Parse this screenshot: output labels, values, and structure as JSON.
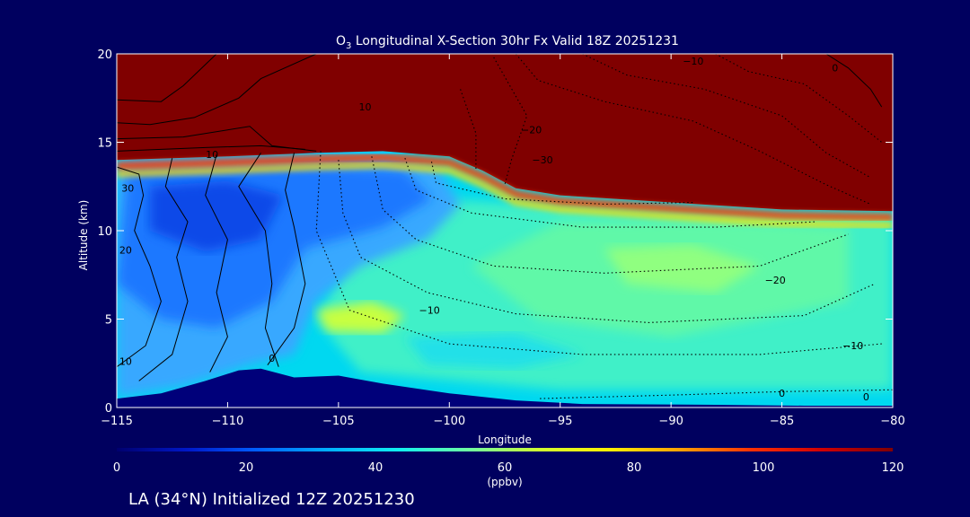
{
  "chart_data": {
    "type": "heatmap",
    "title": "O3 Longitudinal X-Section 30hr  Fx Valid 18Z 20251231",
    "title_parts": {
      "lead": "O",
      "subscript": "3",
      "rest": " Longitudinal X-Section 30hr  Fx Valid 18Z 20251231"
    },
    "xlabel": "Longitude",
    "ylabel": "Altitude (km)",
    "xlim": [
      -115,
      -80
    ],
    "ylim": [
      0,
      20
    ],
    "x_ticks": [
      -115,
      -110,
      -105,
      -100,
      -95,
      -90,
      -85,
      -80
    ],
    "x_tick_labels": [
      "−115",
      "−110",
      "−105",
      "−100",
      "−95",
      "−90",
      "−85",
      "−80"
    ],
    "y_ticks": [
      0,
      5,
      10,
      15,
      20
    ],
    "y_tick_labels": [
      "0",
      "5",
      "10",
      "15",
      "20"
    ],
    "tropopause_km": [
      [
        -115,
        14.0
      ],
      [
        -110,
        14.2
      ],
      [
        -106,
        14.4
      ],
      [
        -103,
        14.5
      ],
      [
        -100,
        14.2
      ],
      [
        -98.5,
        13.4
      ],
      [
        -97,
        12.4
      ],
      [
        -95,
        12.0
      ],
      [
        -90,
        11.6
      ],
      [
        -85,
        11.2
      ],
      [
        -80,
        11.1
      ]
    ],
    "terrain_km": [
      [
        -115,
        0.5
      ],
      [
        -113,
        0.8
      ],
      [
        -111,
        1.5
      ],
      [
        -109.5,
        2.1
      ],
      [
        -108.5,
        2.2
      ],
      [
        -107,
        1.7
      ],
      [
        -105,
        1.8
      ],
      [
        -103,
        1.35
      ],
      [
        -100,
        0.8
      ],
      [
        -97,
        0.4
      ],
      [
        -94,
        0.2
      ],
      [
        -88,
        0.15
      ],
      [
        -84,
        0.1
      ],
      [
        -80,
        0.1
      ]
    ],
    "contour_labels": [
      {
        "text": "10",
        "lon": -103.8,
        "alt": 16.8
      },
      {
        "text": "10",
        "lon": -110.7,
        "alt": 14.1
      },
      {
        "text": "30",
        "lon": -114.5,
        "alt": 12.2
      },
      {
        "text": "20",
        "lon": -114.6,
        "alt": 8.7
      },
      {
        "text": "10",
        "lon": -114.6,
        "alt": 2.4
      },
      {
        "text": "0",
        "lon": -108.0,
        "alt": 2.6
      },
      {
        "text": "−10",
        "lon": -89.0,
        "alt": 19.4
      },
      {
        "text": "0",
        "lon": -82.6,
        "alt": 19.0
      },
      {
        "text": "−20",
        "lon": -96.3,
        "alt": 15.5
      },
      {
        "text": "−30",
        "lon": -95.8,
        "alt": 13.8
      },
      {
        "text": "−20",
        "lon": -85.3,
        "alt": 7.0
      },
      {
        "text": "−10",
        "lon": -100.9,
        "alt": 5.3
      },
      {
        "text": "−10",
        "lon": -81.8,
        "alt": 3.3
      },
      {
        "text": "0",
        "lon": -85.0,
        "alt": 0.6
      },
      {
        "text": "0",
        "lon": -81.2,
        "alt": 0.4
      }
    ],
    "colorbar": {
      "label": "(ppbv)",
      "range": [
        0,
        120
      ],
      "ticks": [
        0,
        20,
        40,
        60,
        80,
        100,
        120
      ],
      "colors": [
        "#00006e",
        "#0018c8",
        "#0060ff",
        "#00b0ff",
        "#10f0f0",
        "#70ffa0",
        "#d0ff30",
        "#fff000",
        "#ffa000",
        "#ff3000",
        "#d00000",
        "#800000"
      ]
    },
    "grid": false,
    "legend": "none"
  },
  "footer": "LA (34°N) Initialized 12Z 20251230",
  "colors": {
    "background": "#00005f",
    "text": "#ffffff",
    "stratosphere": "#800000"
  }
}
